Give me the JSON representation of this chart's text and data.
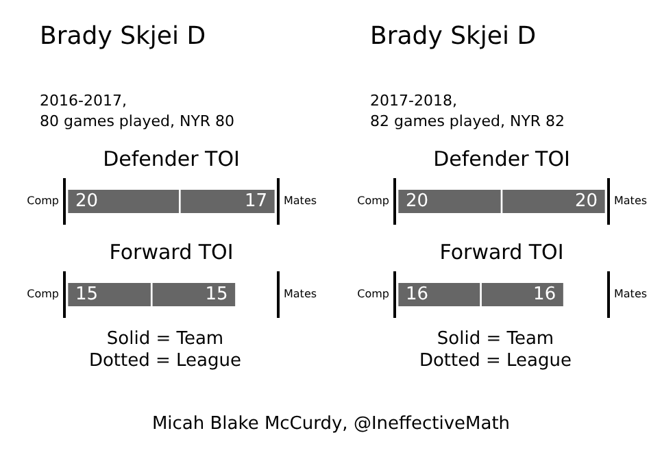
{
  "chart_data": [
    {
      "type": "bar",
      "orientation": "horizontal",
      "stacked": true,
      "title": "Brady Skjei D",
      "subtitle": "2016-2017,\n80 games played, NYR 80",
      "categories": [
        "Defender TOI",
        "Forward TOI"
      ],
      "series": [
        {
          "name": "Comp",
          "color": "#666666",
          "values": [
            20,
            15
          ]
        },
        {
          "name": "Mates",
          "color": "#666666",
          "values": [
            17,
            15
          ]
        }
      ],
      "data_labels": true,
      "annotations": [
        "Solid = Team\nDotted = League"
      ]
    },
    {
      "type": "bar",
      "orientation": "horizontal",
      "stacked": true,
      "title": "Brady Skjei D",
      "subtitle": "2017-2018,\n82 games played, NYR 82",
      "categories": [
        "Defender TOI",
        "Forward TOI"
      ],
      "series": [
        {
          "name": "Comp",
          "color": "#666666",
          "values": [
            20,
            16
          ]
        },
        {
          "name": "Mates",
          "color": "#666666",
          "values": [
            20,
            16
          ]
        }
      ],
      "data_labels": true,
      "annotations": [
        "Solid = Team\nDotted = League"
      ]
    },
    {
      "type": "other",
      "annotations": [
        "Micah Blake McCurdy, @IneffectiveMath"
      ]
    }
  ]
}
